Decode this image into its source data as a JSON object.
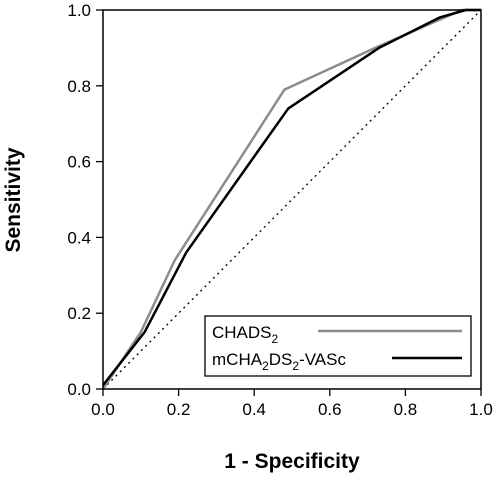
{
  "chart_data": {
    "type": "line",
    "xlabel": "1 - Specificity",
    "ylabel": "Sensitivity",
    "xlim": [
      0,
      1
    ],
    "ylim": [
      0,
      1
    ],
    "x_ticks": [
      "0.0",
      "0.2",
      "0.4",
      "0.6",
      "0.8",
      "1.0"
    ],
    "y_ticks": [
      "0.0",
      "0.2",
      "0.4",
      "0.6",
      "0.8",
      "1.0"
    ],
    "grid": false,
    "legend_position": "bottom-right",
    "reference_line": {
      "style": "dotted",
      "color": "#000000",
      "points": [
        [
          0,
          0
        ],
        [
          1,
          1
        ]
      ]
    },
    "series": [
      {
        "name": "CHADS",
        "name_subscript": "2",
        "color": "#8c8c8c",
        "points": [
          [
            0,
            0
          ],
          [
            0.1,
            0.15
          ],
          [
            0.19,
            0.34
          ],
          [
            0.48,
            0.79
          ],
          [
            0.72,
            0.9
          ],
          [
            0.88,
            0.97
          ],
          [
            0.95,
            1.0
          ],
          [
            1.0,
            1.0
          ]
        ]
      },
      {
        "name_parts": [
          "mCHA",
          "2",
          "DS",
          "2",
          "-VASc"
        ],
        "color": "#000000",
        "points": [
          [
            0,
            0.01
          ],
          [
            0.11,
            0.15
          ],
          [
            0.22,
            0.36
          ],
          [
            0.49,
            0.74
          ],
          [
            0.73,
            0.9
          ],
          [
            0.89,
            0.98
          ],
          [
            0.96,
            1.0
          ],
          [
            1.0,
            1.0
          ]
        ]
      }
    ]
  }
}
